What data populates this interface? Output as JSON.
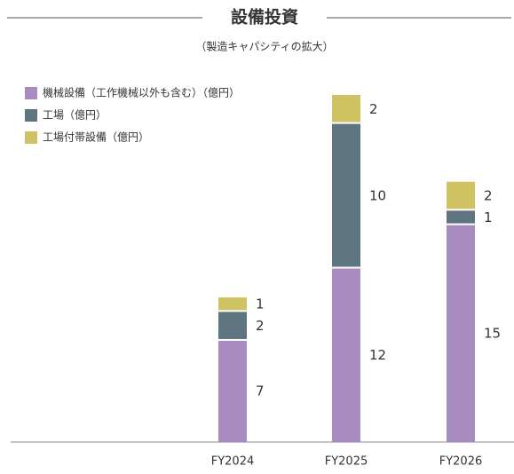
{
  "chart_data": {
    "type": "stacked_bar",
    "title": "設備投資",
    "subtitle": "（製造キャパシティの拡大）",
    "categories": [
      "FY2024",
      "FY2025",
      "FY2026"
    ],
    "series": [
      {
        "name": "機械設備（工作機械以外も含む）（億円）",
        "color": "#a88bbf",
        "values": [
          7,
          12,
          15
        ]
      },
      {
        "name": "工場（億円）",
        "color": "#5e7580",
        "values": [
          2,
          10,
          1
        ]
      },
      {
        "name": "工場付帯設備（億円）",
        "color": "#cfc263",
        "values": [
          1,
          2,
          2
        ]
      }
    ],
    "legend": "top-left"
  }
}
